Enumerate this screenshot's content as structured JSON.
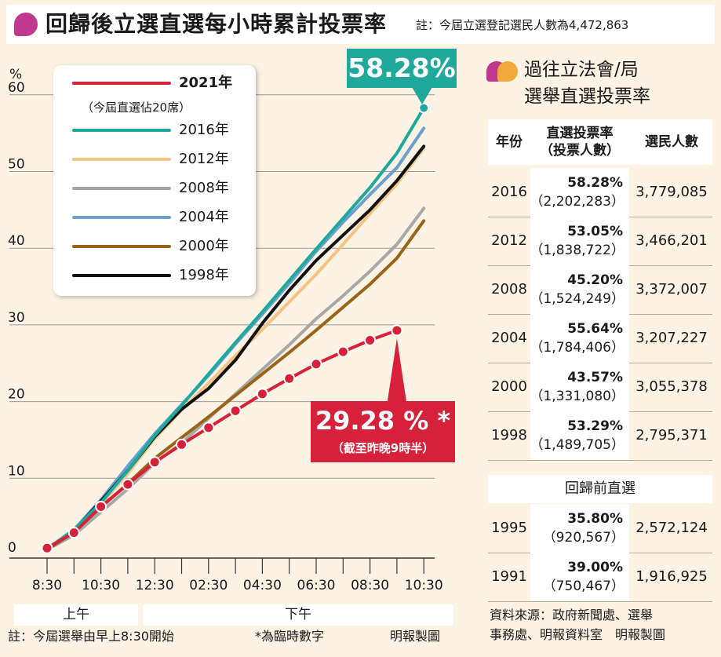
{
  "title": "回歸後立選直選每小時累計投票率",
  "title_note": "註：今屆立選登記選民人數為4,472,863",
  "chart_data": {
    "type": "line",
    "ylabel": "%",
    "ylim": [
      0,
      60
    ],
    "yticks": [
      0,
      10,
      20,
      30,
      40,
      50,
      60
    ],
    "x": [
      "8:30",
      "9:30",
      "10:30",
      "11:30",
      "12:30",
      "13:30",
      "14:30",
      "15:30",
      "16:30",
      "17:30",
      "18:30",
      "19:30",
      "20:30",
      "21:30",
      "22:30"
    ],
    "x_tick_labels": [
      "8:30",
      "",
      "10:30",
      "",
      "12:30",
      "",
      "02:30",
      "",
      "04:30",
      "",
      "06:30",
      "",
      "08:30",
      "",
      "10:30"
    ],
    "period_labels": [
      "上午",
      "下午"
    ],
    "series": [
      {
        "name": "2021年",
        "color": "#d7213a",
        "markers": true,
        "values": [
          0.9,
          2.9,
          6.3,
          9.2,
          12.1,
          14.4,
          16.6,
          18.8,
          21.0,
          23.0,
          24.9,
          26.5,
          28.0,
          29.28,
          null
        ]
      },
      {
        "name": "2016年",
        "color": "#1fa89c",
        "values": [
          0.8,
          3.3,
          6.8,
          11.0,
          15.6,
          19.5,
          23.6,
          27.7,
          31.7,
          35.8,
          39.9,
          43.9,
          47.9,
          52.4,
          58.28
        ]
      },
      {
        "name": "2012年",
        "color": "#f5c383",
        "values": [
          0.8,
          3.1,
          6.6,
          10.6,
          15.2,
          18.9,
          22.4,
          26.0,
          29.4,
          33.0,
          36.6,
          40.5,
          44.5,
          48.4,
          53.05
        ]
      },
      {
        "name": "2008年",
        "color": "#a8a8a8",
        "values": [
          0.7,
          2.6,
          5.6,
          8.6,
          12.0,
          14.6,
          17.8,
          21.0,
          24.2,
          27.4,
          30.8,
          33.8,
          37.0,
          40.5,
          45.2
        ]
      },
      {
        "name": "2004年",
        "color": "#6a9fd0",
        "values": [
          0.8,
          3.3,
          7.2,
          11.6,
          15.8,
          19.6,
          23.4,
          27.5,
          31.4,
          35.4,
          39.6,
          43.4,
          47.0,
          50.5,
          55.64
        ]
      },
      {
        "name": "2000年",
        "color": "#9b6318",
        "values": [
          0.7,
          3.0,
          6.2,
          9.3,
          12.6,
          15.3,
          18.0,
          20.8,
          23.6,
          26.4,
          29.3,
          32.3,
          35.3,
          38.7,
          43.57
        ]
      },
      {
        "name": "1998年",
        "color": "#111111",
        "values": [
          0.8,
          3.2,
          7.0,
          11.0,
          15.4,
          19.0,
          21.7,
          25.4,
          30.2,
          34.5,
          38.4,
          41.7,
          45.0,
          48.8,
          53.29
        ]
      }
    ],
    "legend_note": "（今屆直選佔20席）",
    "callouts": {
      "high": "58.28%",
      "low": "29.28 % *",
      "low_note": "（截至昨晚9時半）"
    },
    "legend_placement": "top-left"
  },
  "footer": {
    "note": "註：今屆選舉由早上8:30開始",
    "star_note": "*為臨時數字",
    "credit": "明報製圖"
  },
  "side_panel": {
    "title_line1": "過往立法會/局",
    "title_line2": "選舉直選投票率",
    "headers": {
      "year": "年份",
      "rate_line1": "直選投票率",
      "rate_line2": "（投票人數）",
      "voters": "選民人數"
    },
    "rows": [
      {
        "year": "2016",
        "rate": "58.28%",
        "votes": "（2,202,283）",
        "voters": "3,779,085"
      },
      {
        "year": "2012",
        "rate": "53.05%",
        "votes": "（1,838,722）",
        "voters": "3,466,201"
      },
      {
        "year": "2008",
        "rate": "45.20%",
        "votes": "（1,524,249）",
        "voters": "3,372,007"
      },
      {
        "year": "2004",
        "rate": "55.64%",
        "votes": "（1,784,406）",
        "voters": "3,207,227"
      },
      {
        "year": "2000",
        "rate": "43.57%",
        "votes": "（1,331,080）",
        "voters": "3,055,378"
      },
      {
        "year": "1998",
        "rate": "53.29%",
        "votes": "（1,489,705）",
        "voters": "2,795,371"
      }
    ],
    "pre_handover_title": "回歸前直選",
    "pre_rows": [
      {
        "year": "1995",
        "rate": "35.80%",
        "votes": "（920,567）",
        "voters": "2,572,124"
      },
      {
        "year": "1991",
        "rate": "39.00%",
        "votes": "（750,467）",
        "voters": "1,916,925"
      }
    ],
    "source_line1": "資料來源：政府新聞處、選舉",
    "source_line2": "事務處、明報資料室　明報製圖"
  }
}
